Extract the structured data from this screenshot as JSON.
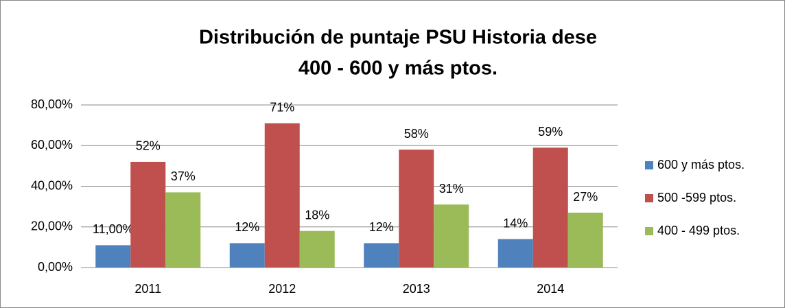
{
  "chart_data": {
    "type": "bar",
    "title": [
      "Distribución de puntaje PSU Historia dese",
      "400 - 600 y más ptos."
    ],
    "categories": [
      "2011",
      "2012",
      "2013",
      "2014"
    ],
    "series": [
      {
        "name": "600 y más ptos.",
        "color": "#4f81bd",
        "values": [
          11,
          12,
          12,
          14
        ],
        "value_labels": [
          "11,00%",
          "12%",
          "12%",
          "14%"
        ]
      },
      {
        "name": "500 -599 ptos.",
        "color": "#c0504d",
        "values": [
          52,
          71,
          58,
          59
        ],
        "value_labels": [
          "52%",
          "71%",
          "58%",
          "59%"
        ]
      },
      {
        "name": "400 - 499 ptos.",
        "color": "#9bbb59",
        "values": [
          37,
          18,
          31,
          27
        ],
        "value_labels": [
          "37%",
          "18%",
          "31%",
          "27%"
        ]
      }
    ],
    "ylim": [
      0,
      80
    ],
    "yticks": [
      {
        "value": 0,
        "label": "0,00%"
      },
      {
        "value": 20,
        "label": "20,00%"
      },
      {
        "value": 40,
        "label": "40,00%"
      },
      {
        "value": 60,
        "label": "60,00%"
      },
      {
        "value": 80,
        "label": "80,00%"
      }
    ],
    "grid": true,
    "legend": "right"
  }
}
